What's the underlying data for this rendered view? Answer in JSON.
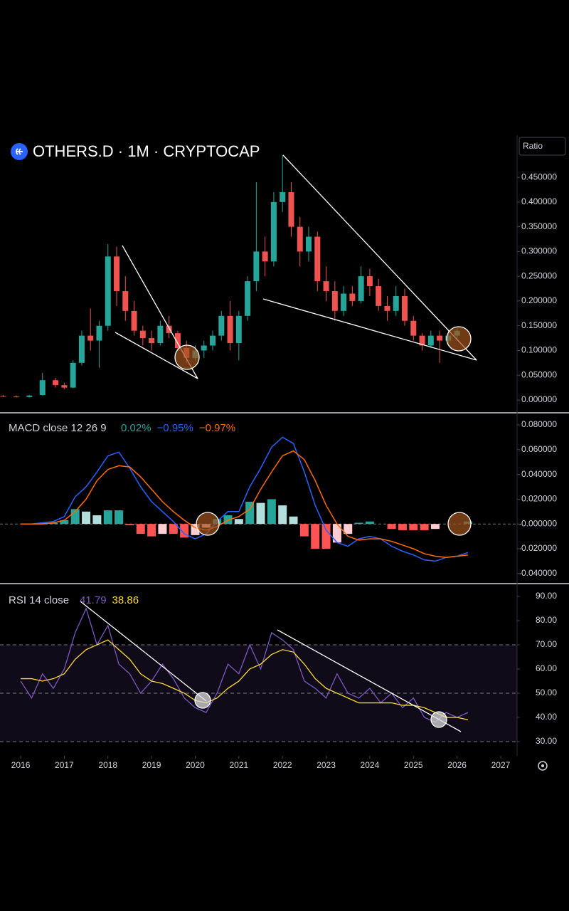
{
  "chart_data": [
    {
      "type": "candlestick",
      "title": "OTHERS.D · 1M · CRYPTOCAP",
      "scale_label": "Ratio",
      "up_color": "#26a69a",
      "down_color": "#ef5350",
      "x": [
        2015.6,
        2015.9,
        2016.2,
        2016.5,
        2016.8,
        2017.0,
        2017.2,
        2017.4,
        2017.6,
        2017.8,
        2018.0,
        2018.2,
        2018.4,
        2018.6,
        2018.8,
        2019.0,
        2019.2,
        2019.4,
        2019.6,
        2019.8,
        2020.0,
        2020.2,
        2020.4,
        2020.6,
        2020.8,
        2021.0,
        2021.2,
        2021.4,
        2021.6,
        2021.8,
        2022.0,
        2022.2,
        2022.4,
        2022.6,
        2022.8,
        2023.0,
        2023.2,
        2023.4,
        2023.6,
        2023.8,
        2024.0,
        2024.2,
        2024.4,
        2024.6,
        2024.8,
        2025.0,
        2025.2,
        2025.4,
        2025.6,
        2025.8,
        2026.0
      ],
      "open": [
        0.008,
        0.007,
        0.006,
        0.01,
        0.04,
        0.03,
        0.025,
        0.075,
        0.13,
        0.12,
        0.15,
        0.29,
        0.22,
        0.18,
        0.14,
        0.125,
        0.115,
        0.15,
        0.135,
        0.105,
        0.085,
        0.1,
        0.11,
        0.13,
        0.17,
        0.115,
        0.17,
        0.24,
        0.3,
        0.28,
        0.4,
        0.42,
        0.35,
        0.3,
        0.33,
        0.24,
        0.22,
        0.18,
        0.215,
        0.2,
        0.25,
        0.23,
        0.19,
        0.18,
        0.21,
        0.16,
        0.13,
        0.11,
        0.13,
        0.12,
        0.13
      ],
      "high": [
        0.01,
        0.009,
        0.01,
        0.055,
        0.045,
        0.035,
        0.08,
        0.14,
        0.185,
        0.16,
        0.315,
        0.31,
        0.25,
        0.2,
        0.15,
        0.14,
        0.16,
        0.17,
        0.14,
        0.12,
        0.11,
        0.12,
        0.14,
        0.18,
        0.2,
        0.18,
        0.25,
        0.44,
        0.33,
        0.42,
        0.495,
        0.44,
        0.37,
        0.35,
        0.34,
        0.27,
        0.24,
        0.23,
        0.23,
        0.27,
        0.265,
        0.245,
        0.21,
        0.23,
        0.225,
        0.17,
        0.135,
        0.14,
        0.14,
        0.14,
        0.145
      ],
      "low": [
        0.006,
        0.005,
        0.005,
        0.009,
        0.025,
        0.022,
        0.024,
        0.07,
        0.1,
        0.065,
        0.14,
        0.19,
        0.16,
        0.13,
        0.11,
        0.1,
        0.11,
        0.125,
        0.1,
        0.075,
        0.08,
        0.085,
        0.1,
        0.12,
        0.1,
        0.08,
        0.16,
        0.22,
        0.25,
        0.27,
        0.38,
        0.33,
        0.27,
        0.28,
        0.22,
        0.2,
        0.16,
        0.17,
        0.19,
        0.195,
        0.21,
        0.18,
        0.16,
        0.17,
        0.15,
        0.12,
        0.1,
        0.105,
        0.075,
        0.11,
        0.12
      ],
      "close": [
        0.007,
        0.006,
        0.009,
        0.04,
        0.03,
        0.025,
        0.075,
        0.13,
        0.12,
        0.15,
        0.29,
        0.22,
        0.18,
        0.14,
        0.125,
        0.115,
        0.15,
        0.135,
        0.105,
        0.085,
        0.1,
        0.11,
        0.13,
        0.17,
        0.115,
        0.17,
        0.24,
        0.3,
        0.28,
        0.4,
        0.42,
        0.35,
        0.3,
        0.33,
        0.24,
        0.22,
        0.18,
        0.215,
        0.2,
        0.25,
        0.23,
        0.19,
        0.18,
        0.21,
        0.16,
        0.13,
        0.11,
        0.13,
        0.12,
        0.13,
        0.14
      ],
      "xlim": [
        2015.527,
        2027.375
      ],
      "ylim": [
        -0.023,
        0.535
      ],
      "yticks": [
        {
          "value": 0.45,
          "label": "0.450000"
        },
        {
          "value": 0.4,
          "label": "0.400000"
        },
        {
          "value": 0.35,
          "label": "0.350000"
        },
        {
          "value": 0.3,
          "label": "0.300000"
        },
        {
          "value": 0.25,
          "label": "0.250000"
        },
        {
          "value": 0.2,
          "label": "0.200000"
        },
        {
          "value": 0.15,
          "label": "0.150000"
        },
        {
          "value": 0.1,
          "label": "0.100000"
        },
        {
          "value": 0.05,
          "label": "0.050000"
        },
        {
          "value": 0,
          "label": "0.000000"
        }
      ]
    },
    {
      "type": "macd",
      "title": "MACD close 12 26 9",
      "readouts": [
        {
          "text": "0.02%",
          "color": "#26a69a"
        },
        {
          "text": "−0.95%",
          "color": "#2962ff"
        },
        {
          "text": "−0.97%",
          "color": "#ff6d00"
        }
      ],
      "x": [
        2016.0,
        2016.25,
        2016.5,
        2016.75,
        2017.0,
        2017.25,
        2017.5,
        2017.75,
        2018.0,
        2018.25,
        2018.5,
        2018.75,
        2019.0,
        2019.25,
        2019.5,
        2019.75,
        2020.0,
        2020.25,
        2020.5,
        2020.75,
        2021.0,
        2021.25,
        2021.5,
        2021.75,
        2022.0,
        2022.25,
        2022.5,
        2022.75,
        2023.0,
        2023.25,
        2023.5,
        2023.75,
        2024.0,
        2024.25,
        2024.5,
        2024.75,
        2025.0,
        2025.25,
        2025.5,
        2025.75,
        2026.0,
        2026.25
      ],
      "macd": {
        "color": "#2962ff",
        "values": [
          0,
          0,
          0.001,
          0.002,
          0.006,
          0.022,
          0.03,
          0.042,
          0.055,
          0.058,
          0.045,
          0.03,
          0.018,
          0.01,
          0.002,
          -0.008,
          -0.012,
          -0.008,
          0.002,
          0.01,
          0.01,
          0.03,
          0.045,
          0.062,
          0.07,
          0.065,
          0.042,
          0.015,
          -0.005,
          -0.015,
          -0.018,
          -0.012,
          -0.01,
          -0.012,
          -0.018,
          -0.022,
          -0.025,
          -0.029,
          -0.03,
          -0.027,
          -0.026,
          -0.023
        ]
      },
      "signal": {
        "color": "#ff6d00",
        "values": [
          0,
          0,
          0,
          0.001,
          0.003,
          0.01,
          0.02,
          0.035,
          0.044,
          0.047,
          0.046,
          0.038,
          0.028,
          0.018,
          0.01,
          0.003,
          -0.003,
          -0.005,
          -0.002,
          0.003,
          0.006,
          0.012,
          0.028,
          0.042,
          0.055,
          0.059,
          0.052,
          0.035,
          0.015,
          0,
          -0.01,
          -0.013,
          -0.012,
          -0.012,
          -0.014,
          -0.017,
          -0.02,
          -0.024,
          -0.026,
          -0.027,
          -0.026,
          -0.025
        ]
      },
      "histogram": {
        "colors": {
          "pos_up": "#26a69a",
          "pos_down": "#b2dfdb",
          "neg_down": "#ff5252",
          "neg_up": "#ffcdd2"
        },
        "values": [
          0,
          0,
          0.001,
          0.001,
          0.003,
          0.012,
          0.01,
          0.007,
          0.011,
          0.011,
          -0.001,
          -0.008,
          -0.01,
          -0.008,
          -0.008,
          -0.011,
          -0.009,
          -0.003,
          0.004,
          0.007,
          0.004,
          0.018,
          0.017,
          0.02,
          0.015,
          0.006,
          -0.01,
          -0.02,
          -0.02,
          -0.015,
          -0.008,
          0.001,
          0.002,
          0,
          -0.004,
          -0.005,
          -0.005,
          -0.005,
          -0.004,
          0,
          0,
          0.002
        ]
      },
      "zero_line": true,
      "xlim": [
        2015.527,
        2027.375
      ],
      "ylim": [
        -0.047,
        0.0886
      ],
      "yticks": [
        {
          "value": 0.08,
          "label": "0.080000"
        },
        {
          "value": 0.06,
          "label": "0.060000"
        },
        {
          "value": 0.04,
          "label": "0.040000"
        },
        {
          "value": 0.02,
          "label": "0.020000"
        },
        {
          "value": 0,
          "label": "-0.000000"
        },
        {
          "value": -0.02,
          "label": "-0.020000"
        },
        {
          "value": -0.04,
          "label": "-0.040000"
        }
      ]
    },
    {
      "type": "rsi",
      "title": "RSI 14 close",
      "readouts": [
        {
          "text": "41.79",
          "color": "#7e57c2"
        },
        {
          "text": "38.86",
          "color": "#fdd835"
        }
      ],
      "x": [
        2016.0,
        2016.25,
        2016.5,
        2016.75,
        2017.0,
        2017.25,
        2017.5,
        2017.75,
        2018.0,
        2018.25,
        2018.5,
        2018.75,
        2019.0,
        2019.25,
        2019.5,
        2019.75,
        2020.0,
        2020.25,
        2020.5,
        2020.75,
        2021.0,
        2021.25,
        2021.5,
        2021.75,
        2022.0,
        2022.25,
        2022.5,
        2022.75,
        2023.0,
        2023.25,
        2023.5,
        2023.75,
        2024.0,
        2024.25,
        2024.5,
        2024.75,
        2025.0,
        2025.25,
        2025.5,
        2025.75,
        2026.0,
        2026.25
      ],
      "rsi": {
        "color": "#7e57c2",
        "values": [
          55,
          48,
          58,
          52,
          60,
          75,
          85,
          70,
          78,
          62,
          58,
          50,
          55,
          62,
          56,
          48,
          44,
          42,
          50,
          62,
          58,
          70,
          60,
          75,
          72,
          68,
          55,
          52,
          48,
          58,
          50,
          48,
          52,
          46,
          50,
          44,
          48,
          40,
          38,
          42,
          40,
          42
        ]
      },
      "ma": {
        "color": "#fdd835",
        "values": [
          56,
          56,
          55,
          56,
          58,
          64,
          68,
          70,
          72,
          68,
          64,
          58,
          55,
          54,
          52,
          50,
          47,
          46,
          48,
          52,
          55,
          60,
          62,
          66,
          68,
          67,
          62,
          56,
          52,
          50,
          48,
          46,
          46,
          46,
          46,
          45,
          45,
          44,
          42,
          40,
          40,
          39
        ]
      },
      "bands": [
        70,
        50,
        30
      ],
      "band_fill": "rgba(126,87,194,0.12)",
      "xlim": [
        2015.527,
        2027.375
      ],
      "ylim": [
        24.1,
        94.7
      ],
      "yticks": [
        {
          "value": 90,
          "label": "90.00"
        },
        {
          "value": 80,
          "label": "80.00"
        },
        {
          "value": 70,
          "label": "70.00"
        },
        {
          "value": 60,
          "label": "60.00"
        },
        {
          "value": 50,
          "label": "50.00"
        },
        {
          "value": 40,
          "label": "40.00"
        },
        {
          "value": 30,
          "label": "30.00"
        }
      ],
      "xticks": [
        2016,
        2017,
        2018,
        2019,
        2020,
        2021,
        2022,
        2023,
        2024,
        2025,
        2026,
        2027
      ]
    }
  ]
}
